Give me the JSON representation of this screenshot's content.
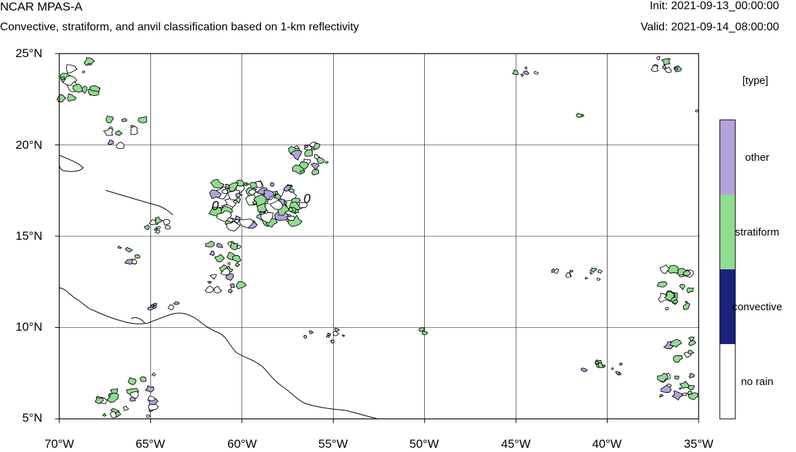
{
  "header": {
    "title": "NCAR MPAS-A",
    "subtitle": "Convective, stratiform, and anvil classification based on 1-km reflectivity",
    "init": "Init: 2021-09-13_00:00:00",
    "valid": "Valid: 2021-09-14_08:00:00"
  },
  "map": {
    "lon_range": [
      -70,
      -35
    ],
    "lat_range": [
      5,
      25
    ],
    "grid": true,
    "x_tick_labels": [
      "70°W",
      "65°W",
      "60°W",
      "55°W",
      "50°W",
      "45°W",
      "40°W",
      "35°W"
    ],
    "y_tick_labels": [
      "25°N",
      "20°N",
      "15°N",
      "10°N",
      "5°N"
    ],
    "contour_labels": [
      "0",
      "0"
    ]
  },
  "legend": {
    "title": "[type]",
    "items": [
      {
        "label": "other",
        "color": "#b3a3dc"
      },
      {
        "label": "stratiform",
        "color": "#90dc90"
      },
      {
        "label": "convective",
        "color": "#1a237a"
      },
      {
        "label": "no rain",
        "color": "#ffffff"
      }
    ]
  }
}
